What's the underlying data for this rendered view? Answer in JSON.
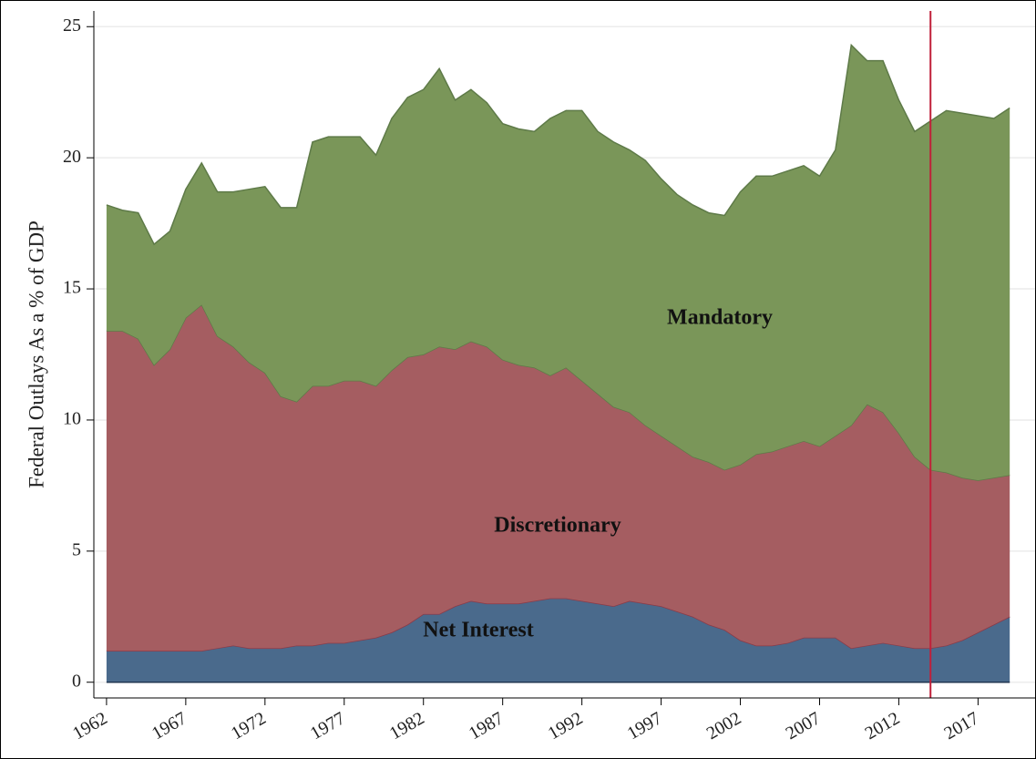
{
  "chart_data": {
    "type": "stacked_area",
    "ylabel": "Federal Outlays As a % of GDP",
    "x": [
      1962,
      1963,
      1964,
      1965,
      1966,
      1967,
      1968,
      1969,
      1970,
      1971,
      1972,
      1973,
      1974,
      1975,
      1976,
      1977,
      1978,
      1979,
      1980,
      1981,
      1982,
      1983,
      1984,
      1985,
      1986,
      1987,
      1988,
      1989,
      1990,
      1991,
      1992,
      1993,
      1994,
      1995,
      1996,
      1997,
      1998,
      1999,
      2000,
      2001,
      2002,
      2003,
      2004,
      2005,
      2006,
      2007,
      2008,
      2009,
      2010,
      2011,
      2012,
      2013,
      2014,
      2015,
      2016,
      2017,
      2018,
      2019
    ],
    "series": [
      {
        "name": "Net Interest",
        "color": "#4a6a8c",
        "line_color": "#8a3a48",
        "values": [
          1.2,
          1.2,
          1.2,
          1.2,
          1.2,
          1.2,
          1.2,
          1.3,
          1.4,
          1.3,
          1.3,
          1.3,
          1.4,
          1.4,
          1.5,
          1.5,
          1.6,
          1.7,
          1.9,
          2.2,
          2.6,
          2.6,
          2.9,
          3.1,
          3.0,
          3.0,
          3.0,
          3.1,
          3.2,
          3.2,
          3.1,
          3.0,
          2.9,
          3.1,
          3.0,
          2.9,
          2.7,
          2.5,
          2.2,
          2.0,
          1.6,
          1.4,
          1.4,
          1.5,
          1.7,
          1.7,
          1.7,
          1.3,
          1.4,
          1.5,
          1.4,
          1.3,
          1.3,
          1.4,
          1.6,
          1.9,
          2.2,
          2.5
        ]
      },
      {
        "name": "Discretionary",
        "color": "#a55d61",
        "line_color": "#5e7a48",
        "values": [
          12.2,
          12.2,
          11.9,
          10.9,
          11.5,
          12.7,
          13.2,
          11.9,
          11.4,
          10.9,
          10.5,
          9.6,
          9.3,
          9.9,
          9.8,
          10.0,
          9.9,
          9.6,
          10.0,
          10.2,
          9.9,
          10.2,
          9.8,
          9.9,
          9.8,
          9.3,
          9.1,
          8.9,
          8.5,
          8.8,
          8.4,
          8.0,
          7.6,
          7.2,
          6.8,
          6.5,
          6.3,
          6.1,
          6.2,
          6.1,
          6.7,
          7.3,
          7.4,
          7.5,
          7.5,
          7.3,
          7.7,
          8.5,
          9.2,
          8.8,
          8.1,
          7.3,
          6.8,
          6.6,
          6.2,
          5.8,
          5.6,
          5.4
        ]
      },
      {
        "name": "Mandatory",
        "color": "#7a9659",
        "line_color": "#5e7a48",
        "values": [
          4.8,
          4.6,
          4.8,
          4.6,
          4.5,
          4.9,
          5.4,
          5.5,
          5.9,
          6.6,
          7.1,
          7.2,
          7.4,
          9.3,
          9.5,
          9.3,
          9.3,
          8.8,
          9.6,
          9.9,
          10.1,
          10.6,
          9.5,
          9.6,
          9.3,
          9.0,
          9.0,
          9.0,
          9.8,
          9.8,
          10.3,
          10.0,
          10.1,
          10.0,
          10.1,
          9.8,
          9.6,
          9.6,
          9.5,
          9.7,
          10.4,
          10.6,
          10.5,
          10.5,
          10.5,
          10.3,
          10.9,
          14.5,
          13.1,
          13.4,
          12.7,
          12.4,
          13.3,
          13.8,
          13.9,
          13.9,
          13.7,
          14.0
        ]
      }
    ],
    "xlim": [
      1961.2,
      2020.6
    ],
    "xticks": [
      1962,
      1967,
      1972,
      1977,
      1982,
      1987,
      1992,
      1997,
      2002,
      2007,
      2012,
      2017
    ],
    "ylim": [
      -0.6,
      25.6
    ],
    "yticks": [
      0,
      5,
      10,
      15,
      20,
      25
    ],
    "grid": true,
    "vline": 2014,
    "vline_color": "#c0203a"
  }
}
